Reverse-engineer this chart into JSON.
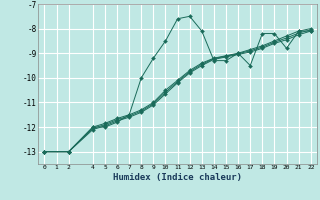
{
  "xlabel": "Humidex (Indice chaleur)",
  "background_color": "#c0e8e4",
  "grid_color": "#ffffff",
  "line_color": "#1a6b5a",
  "xlim": [
    -0.5,
    22.5
  ],
  "ylim": [
    -13.5,
    -7.0
  ],
  "xticks": [
    0,
    1,
    2,
    4,
    5,
    6,
    7,
    8,
    9,
    10,
    11,
    12,
    13,
    14,
    15,
    16,
    17,
    18,
    19,
    20,
    21,
    22
  ],
  "yticks": [
    -7,
    -8,
    -9,
    -10,
    -11,
    -12,
    -13
  ],
  "series1": [
    [
      0,
      -13.0
    ],
    [
      2,
      -13.0
    ],
    [
      4,
      -12.0
    ],
    [
      5,
      -12.0
    ],
    [
      6,
      -11.8
    ],
    [
      7,
      -11.5
    ],
    [
      8,
      -10.0
    ],
    [
      9,
      -9.2
    ],
    [
      10,
      -8.5
    ],
    [
      11,
      -7.6
    ],
    [
      12,
      -7.5
    ],
    [
      13,
      -8.1
    ],
    [
      14,
      -9.3
    ],
    [
      15,
      -9.3
    ],
    [
      16,
      -9.0
    ],
    [
      17,
      -9.5
    ],
    [
      18,
      -8.2
    ],
    [
      19,
      -8.2
    ],
    [
      20,
      -8.8
    ],
    [
      21,
      -8.1
    ],
    [
      22,
      -8.1
    ]
  ],
  "series2": [
    [
      0,
      -13.0
    ],
    [
      2,
      -13.0
    ],
    [
      4,
      -12.0
    ],
    [
      5,
      -11.85
    ],
    [
      6,
      -11.65
    ],
    [
      7,
      -11.5
    ],
    [
      8,
      -11.3
    ],
    [
      9,
      -11.0
    ],
    [
      10,
      -10.5
    ],
    [
      11,
      -10.1
    ],
    [
      12,
      -9.7
    ],
    [
      13,
      -9.4
    ],
    [
      14,
      -9.2
    ],
    [
      15,
      -9.1
    ],
    [
      16,
      -9.0
    ],
    [
      17,
      -8.85
    ],
    [
      18,
      -8.7
    ],
    [
      19,
      -8.5
    ],
    [
      20,
      -8.3
    ],
    [
      21,
      -8.1
    ],
    [
      22,
      -8.0
    ]
  ],
  "series3": [
    [
      0,
      -13.0
    ],
    [
      2,
      -13.0
    ],
    [
      4,
      -12.1
    ],
    [
      5,
      -11.95
    ],
    [
      6,
      -11.75
    ],
    [
      7,
      -11.6
    ],
    [
      8,
      -11.4
    ],
    [
      9,
      -11.1
    ],
    [
      10,
      -10.65
    ],
    [
      11,
      -10.2
    ],
    [
      12,
      -9.8
    ],
    [
      13,
      -9.5
    ],
    [
      14,
      -9.25
    ],
    [
      15,
      -9.15
    ],
    [
      16,
      -9.05
    ],
    [
      17,
      -8.95
    ],
    [
      18,
      -8.8
    ],
    [
      19,
      -8.6
    ],
    [
      20,
      -8.45
    ],
    [
      21,
      -8.25
    ],
    [
      22,
      -8.1
    ]
  ],
  "series4": [
    [
      0,
      -13.0
    ],
    [
      2,
      -13.0
    ],
    [
      4,
      -12.05
    ],
    [
      5,
      -11.9
    ],
    [
      6,
      -11.7
    ],
    [
      7,
      -11.55
    ],
    [
      8,
      -11.35
    ],
    [
      9,
      -11.05
    ],
    [
      10,
      -10.58
    ],
    [
      11,
      -10.15
    ],
    [
      12,
      -9.75
    ],
    [
      13,
      -9.45
    ],
    [
      14,
      -9.22
    ],
    [
      15,
      -9.12
    ],
    [
      16,
      -9.02
    ],
    [
      17,
      -8.9
    ],
    [
      18,
      -8.75
    ],
    [
      19,
      -8.55
    ],
    [
      20,
      -8.38
    ],
    [
      21,
      -8.18
    ],
    [
      22,
      -8.05
    ]
  ]
}
